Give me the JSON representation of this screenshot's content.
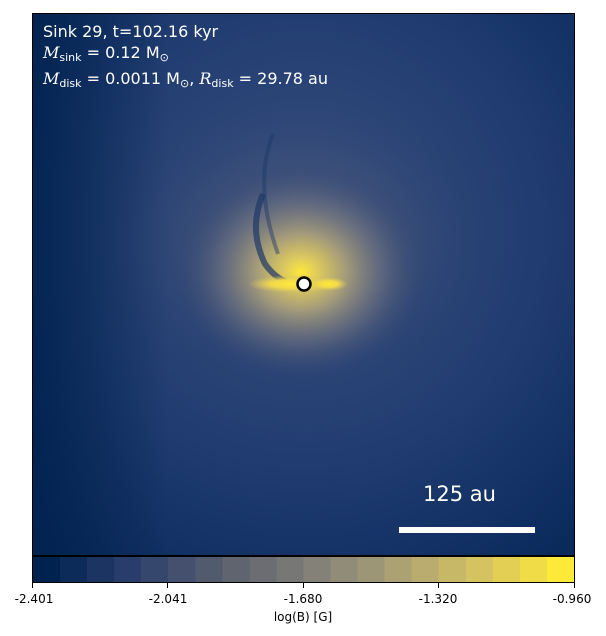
{
  "annotation": {
    "title_line": "Sink 29, t=102.16 kyr",
    "m_sink_symbol": "M",
    "m_sink_sub": "sink",
    "m_sink_value": " = 0.12 M",
    "m_sink_unit_sub": "⊙",
    "m_disk_symbol": "M",
    "m_disk_sub": "disk",
    "m_disk_value": " = 0.0011 M",
    "m_disk_unit_sub": "⊙",
    "r_disk_prefix": ", ",
    "r_disk_symbol": "R",
    "r_disk_sub": "disk",
    "r_disk_value": " = 29.78 au"
  },
  "scale_bar": {
    "label": "125 au"
  },
  "colorbar": {
    "ticks": [
      "-2.401",
      "-2.041",
      "-1.680",
      "-1.320",
      "-0.960"
    ],
    "label": "log(B) [G]",
    "colors": [
      "#00224e",
      "#2a3f6d",
      "#575d6d",
      "#7d7c78",
      "#a69d75",
      "#d3c164",
      "#fee838"
    ]
  }
}
